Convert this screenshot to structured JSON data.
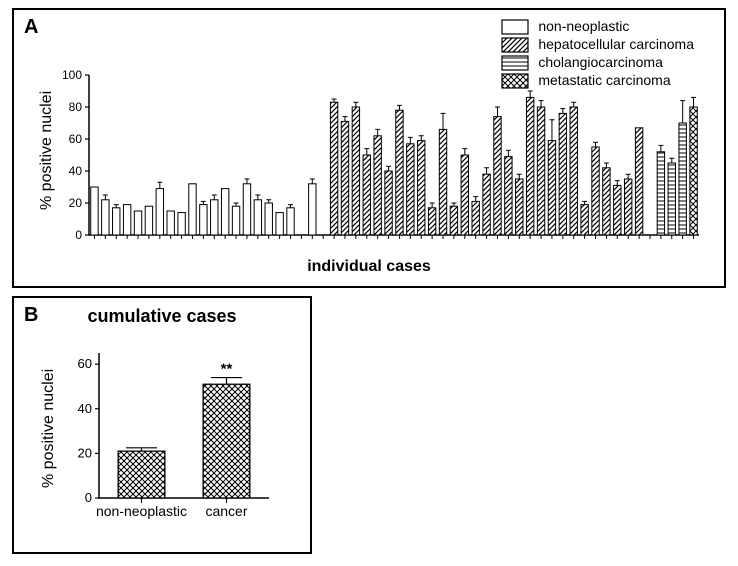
{
  "panelA": {
    "label": "A",
    "ylabel": "% positive nuclei",
    "xlabel": "individual cases",
    "ylim": [
      0,
      100
    ],
    "ytick_step": 20,
    "bar_width": 0.68,
    "colors": {
      "background": "#ffffff",
      "axis": "#000000"
    },
    "legend": [
      {
        "label": "non-neoplastic",
        "pattern": "none"
      },
      {
        "label": "hepatocellular carcinoma",
        "pattern": "diag"
      },
      {
        "label": "cholangiocarcinoma",
        "pattern": "horiz"
      },
      {
        "label": "metastatic carcinoma",
        "pattern": "cross"
      }
    ],
    "bars": [
      {
        "v": 30,
        "e": 0,
        "p": "none"
      },
      {
        "v": 22,
        "e": 3,
        "p": "none"
      },
      {
        "v": 17,
        "e": 2,
        "p": "none"
      },
      {
        "v": 19,
        "e": 0,
        "p": "none"
      },
      {
        "v": 15,
        "e": 0,
        "p": "none"
      },
      {
        "v": 18,
        "e": 0,
        "p": "none"
      },
      {
        "v": 29,
        "e": 4,
        "p": "none"
      },
      {
        "v": 15,
        "e": 0,
        "p": "none"
      },
      {
        "v": 14,
        "e": 0,
        "p": "none"
      },
      {
        "v": 32,
        "e": 0,
        "p": "none"
      },
      {
        "v": 19,
        "e": 2,
        "p": "none"
      },
      {
        "v": 22,
        "e": 3,
        "p": "none"
      },
      {
        "v": 29,
        "e": 0,
        "p": "none"
      },
      {
        "v": 18,
        "e": 2,
        "p": "none"
      },
      {
        "v": 32,
        "e": 3,
        "p": "none"
      },
      {
        "v": 22,
        "e": 3,
        "p": "none"
      },
      {
        "v": 20,
        "e": 2,
        "p": "none"
      },
      {
        "v": 14,
        "e": 0,
        "p": "none"
      },
      {
        "v": 17,
        "e": 2,
        "p": "none"
      },
      {
        "v": 0,
        "e": 0,
        "p": "gap"
      },
      {
        "v": 32,
        "e": 3,
        "p": "none"
      },
      {
        "v": 0,
        "e": 0,
        "p": "gap"
      },
      {
        "v": 83,
        "e": 2,
        "p": "diag"
      },
      {
        "v": 71,
        "e": 3,
        "p": "diag"
      },
      {
        "v": 80,
        "e": 3,
        "p": "diag"
      },
      {
        "v": 50,
        "e": 4,
        "p": "diag"
      },
      {
        "v": 62,
        "e": 4,
        "p": "diag"
      },
      {
        "v": 40,
        "e": 3,
        "p": "diag"
      },
      {
        "v": 78,
        "e": 3,
        "p": "diag"
      },
      {
        "v": 57,
        "e": 4,
        "p": "diag"
      },
      {
        "v": 59,
        "e": 3,
        "p": "diag"
      },
      {
        "v": 17,
        "e": 3,
        "p": "diag"
      },
      {
        "v": 66,
        "e": 10,
        "p": "diag"
      },
      {
        "v": 18,
        "e": 2,
        "p": "diag"
      },
      {
        "v": 50,
        "e": 4,
        "p": "diag"
      },
      {
        "v": 21,
        "e": 3,
        "p": "diag"
      },
      {
        "v": 38,
        "e": 4,
        "p": "diag"
      },
      {
        "v": 74,
        "e": 6,
        "p": "diag"
      },
      {
        "v": 49,
        "e": 4,
        "p": "diag"
      },
      {
        "v": 35,
        "e": 3,
        "p": "diag"
      },
      {
        "v": 86,
        "e": 4,
        "p": "diag"
      },
      {
        "v": 80,
        "e": 4,
        "p": "diag"
      },
      {
        "v": 59,
        "e": 13,
        "p": "diag"
      },
      {
        "v": 76,
        "e": 3,
        "p": "diag"
      },
      {
        "v": 80,
        "e": 3,
        "p": "diag"
      },
      {
        "v": 19,
        "e": 2,
        "p": "diag"
      },
      {
        "v": 55,
        "e": 3,
        "p": "diag"
      },
      {
        "v": 42,
        "e": 3,
        "p": "diag"
      },
      {
        "v": 31,
        "e": 3,
        "p": "diag"
      },
      {
        "v": 35,
        "e": 3,
        "p": "diag"
      },
      {
        "v": 67,
        "e": 0,
        "p": "diag"
      },
      {
        "v": 0,
        "e": 0,
        "p": "gap"
      },
      {
        "v": 52,
        "e": 4,
        "p": "horiz"
      },
      {
        "v": 45,
        "e": 3,
        "p": "horiz"
      },
      {
        "v": 70,
        "e": 14,
        "p": "horiz"
      },
      {
        "v": 80,
        "e": 6,
        "p": "cross"
      }
    ]
  },
  "panelB": {
    "label": "B",
    "title": "cumulative cases",
    "ylabel": "% positive nuclei",
    "ylim": [
      0,
      65
    ],
    "yticks": [
      0,
      20,
      40,
      60
    ],
    "bar_width": 0.55,
    "colors": {
      "background": "#ffffff",
      "axis": "#000000"
    },
    "bars": [
      {
        "label": "non-neoplastic",
        "v": 21,
        "e": 1.5,
        "p": "cross",
        "sig": ""
      },
      {
        "label": "cancer",
        "v": 51,
        "e": 3,
        "p": "cross",
        "sig": "**"
      }
    ]
  },
  "fonts": {
    "label_fontsize": 16,
    "tick_fontsize": 13,
    "title_fontsize": 18
  }
}
